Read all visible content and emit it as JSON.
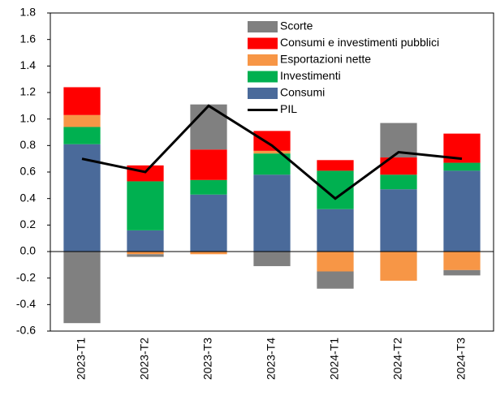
{
  "chart_data": {
    "type": "bar",
    "stacked": true,
    "categories": [
      "2023-T1",
      "2023-T2",
      "2023-T3",
      "2023-T4",
      "2024-T1",
      "2024-T2",
      "2024-T3"
    ],
    "series": [
      {
        "name": "Scorte",
        "color": "#808080",
        "values": [
          -0.54,
          -0.02,
          0.34,
          -0.11,
          -0.13,
          0.26,
          -0.04
        ]
      },
      {
        "name": "Consumi e investimenti pubblici",
        "color": "#ff0000",
        "values": [
          0.21,
          0.12,
          0.23,
          0.15,
          0.08,
          0.13,
          0.22
        ]
      },
      {
        "name": "Esportazioni nette",
        "color": "#f79646",
        "values": [
          0.09,
          -0.02,
          -0.02,
          0.02,
          -0.15,
          -0.22,
          -0.14
        ]
      },
      {
        "name": "Investimenti",
        "color": "#00b050",
        "values": [
          0.13,
          0.37,
          0.11,
          0.16,
          0.29,
          0.11,
          0.06
        ]
      },
      {
        "name": "Consumi",
        "color": "#4a6a9a",
        "values": [
          0.81,
          0.16,
          0.43,
          0.58,
          0.32,
          0.47,
          0.61
        ]
      },
      {
        "name": "PIL",
        "color": "#000000",
        "type": "line",
        "values": [
          0.7,
          0.6,
          1.1,
          0.8,
          0.4,
          0.75,
          0.7
        ]
      }
    ],
    "ylim": [
      -0.6,
      1.8
    ],
    "yticks": [
      {
        "value": 1.8,
        "label": "1.8"
      },
      {
        "value": 1.6,
        "label": "1.6"
      },
      {
        "value": 1.4,
        "label": "1.4"
      },
      {
        "value": 1.2,
        "label": "1.2"
      },
      {
        "value": 1.0,
        "label": "1.0"
      },
      {
        "value": 0.8,
        "label": "0.8"
      },
      {
        "value": 0.6,
        "label": "0.6"
      },
      {
        "value": 0.4,
        "label": "0.4"
      },
      {
        "value": 0.2,
        "label": "0.2"
      },
      {
        "value": 0.0,
        "label": "0.0"
      },
      {
        "value": -0.2,
        "label": "-0.2"
      },
      {
        "value": -0.4,
        "label": "-0.4"
      },
      {
        "value": -0.6,
        "label": "-0.6"
      }
    ]
  }
}
